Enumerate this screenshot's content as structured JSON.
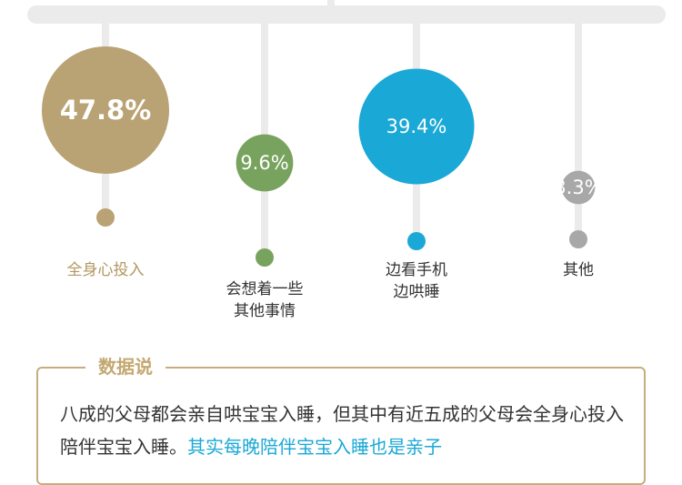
{
  "chart_data": {
    "type": "bubble",
    "title": "",
    "categories": [
      "全身心投入",
      "会想着一些\n其他事情",
      "边看手机\n边哄睡",
      "其他"
    ],
    "values": [
      47.8,
      9.6,
      39.4,
      3.3
    ],
    "value_labels": [
      "47.8%",
      "9.6%",
      "39.4%",
      "3.3%"
    ],
    "colors": [
      "#b9a273",
      "#78a35e",
      "#1aa8d6",
      "#a8a8a8"
    ],
    "label_colors": [
      "#b39763",
      "#333333",
      "#333333",
      "#333333"
    ]
  },
  "note": {
    "title": "数据说",
    "text_plain": "八成的父母都会亲自哄宝宝入睡，但其中有近五成的父母会全身心投入陪伴宝宝入睡。",
    "text_highlight": "其实每晚陪伴宝宝入睡也是亲子"
  },
  "colors": {
    "note_border": "#c6ad7e",
    "note_title": "#c4a871",
    "highlight": "#1aa8d6"
  }
}
